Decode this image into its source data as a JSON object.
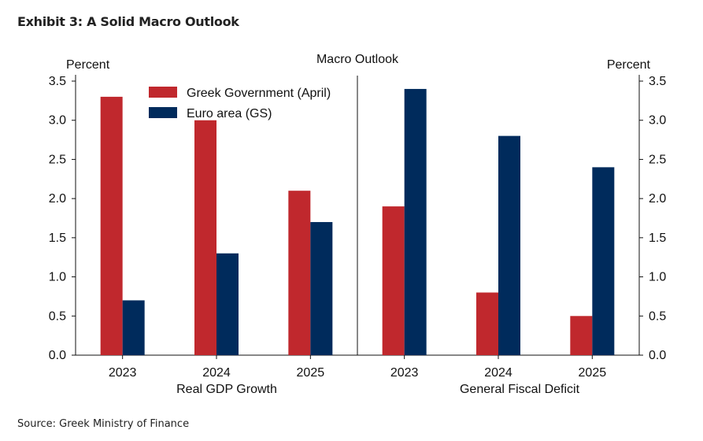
{
  "exhibit_title": "Exhibit 3: A Solid Macro Outlook",
  "source": "Source: Greek Ministry of Finance",
  "chart_data": {
    "type": "bar",
    "title": "Macro Outlook",
    "left_unit": "Percent",
    "right_unit": "Percent",
    "ylim": [
      0,
      3.5
    ],
    "yticks": [
      "0.0",
      "0.5",
      "1.0",
      "1.5",
      "2.0",
      "2.5",
      "3.0",
      "3.5"
    ],
    "legend_placement": "top-left",
    "colors": {
      "greek": "#c0282d",
      "euro": "#002b5c"
    },
    "series_names": [
      "Greek Government (April)",
      "Euro area (GS)"
    ],
    "panels": [
      {
        "label": "Real GDP Growth",
        "categories": [
          "2023",
          "2024",
          "2025"
        ],
        "series": [
          {
            "name": "Greek Government (April)",
            "values": [
              3.3,
              3.0,
              2.1
            ]
          },
          {
            "name": "Euro area (GS)",
            "values": [
              0.7,
              1.3,
              1.7
            ]
          }
        ]
      },
      {
        "label": "General Fiscal Deficit",
        "categories": [
          "2023",
          "2024",
          "2025"
        ],
        "series": [
          {
            "name": "Greek Government (April)",
            "values": [
              1.9,
              0.8,
              0.5
            ]
          },
          {
            "name": "Euro area (GS)",
            "values": [
              3.4,
              2.8,
              2.4
            ]
          }
        ]
      }
    ]
  }
}
